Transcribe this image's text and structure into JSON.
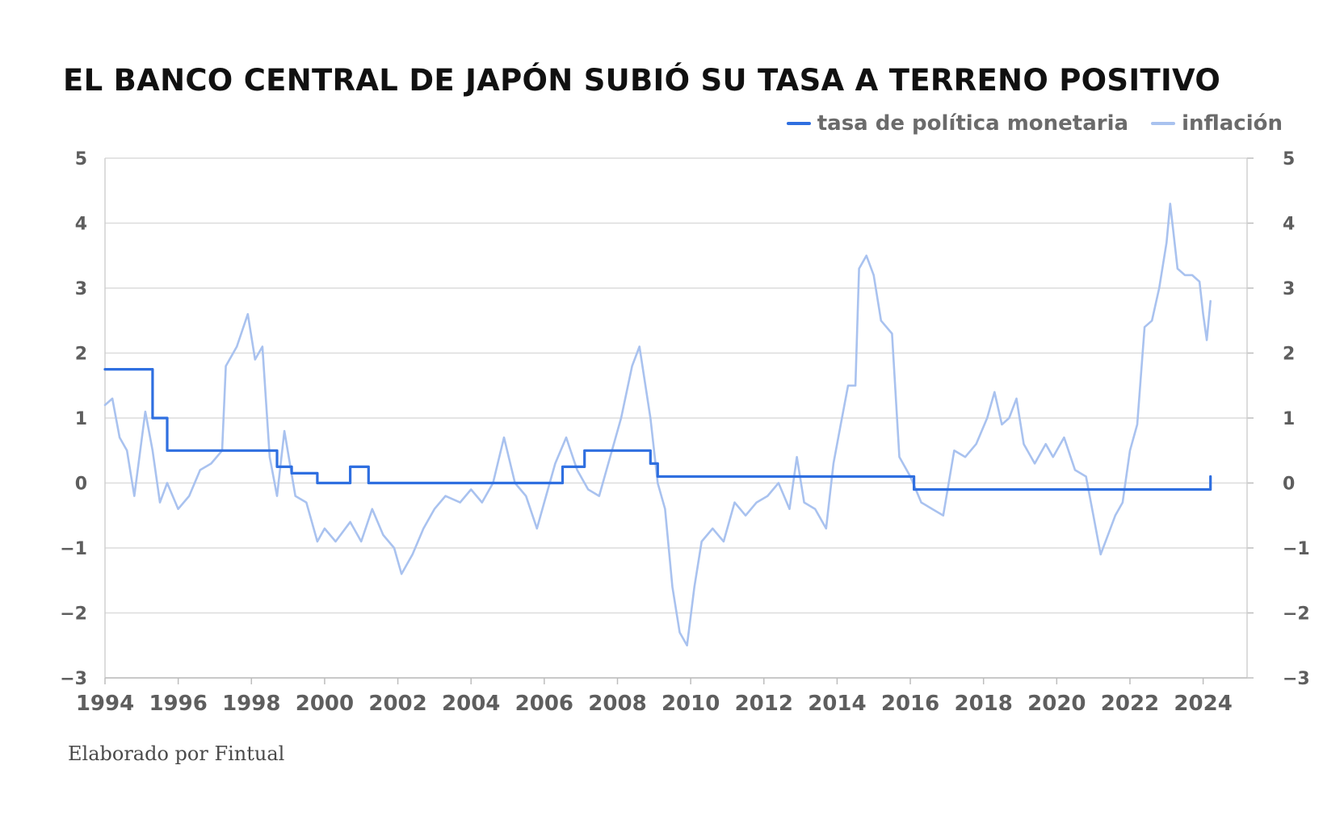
{
  "title": "EL BANCO CENTRAL DE JAPÓN SUBIÓ SU TASA A TERRENO POSITIVO",
  "source": "Elaborado por Fintual",
  "chart_data": {
    "type": "line",
    "title": "EL BANCO CENTRAL DE JAPÓN SUBIÓ SU TASA A TERRENO POSITIVO",
    "xlabel": "",
    "ylabel": "",
    "xlim": [
      1994,
      2025.2
    ],
    "ylim": [
      -3,
      5
    ],
    "grid": true,
    "legend_position": "top-right",
    "x_ticks": [
      "1994",
      "1996",
      "1998",
      "2000",
      "2002",
      "2004",
      "2006",
      "2008",
      "2010",
      "2012",
      "2014",
      "2016",
      "2018",
      "2020",
      "2022",
      "2024"
    ],
    "y_ticks": [
      "5",
      "4",
      "3",
      "2",
      "1",
      "0",
      "−1",
      "−2",
      "−3"
    ],
    "y_tick_values": [
      5,
      4,
      3,
      2,
      1,
      0,
      -1,
      -2,
      -3
    ],
    "series": [
      {
        "name": "tasa de política monetaria",
        "color": "#2f6fe0",
        "step": true,
        "points": [
          [
            1994.0,
            1.75
          ],
          [
            1995.3,
            1.75
          ],
          [
            1995.3,
            1.0
          ],
          [
            1995.7,
            1.0
          ],
          [
            1995.7,
            0.5
          ],
          [
            1998.7,
            0.5
          ],
          [
            1998.7,
            0.25
          ],
          [
            1999.1,
            0.25
          ],
          [
            1999.1,
            0.15
          ],
          [
            1999.8,
            0.15
          ],
          [
            1999.8,
            0.0
          ],
          [
            2000.7,
            0.0
          ],
          [
            2000.7,
            0.25
          ],
          [
            2001.2,
            0.25
          ],
          [
            2001.2,
            0.0
          ],
          [
            2006.5,
            0.0
          ],
          [
            2006.5,
            0.25
          ],
          [
            2007.1,
            0.25
          ],
          [
            2007.1,
            0.5
          ],
          [
            2008.9,
            0.5
          ],
          [
            2008.9,
            0.3
          ],
          [
            2009.1,
            0.3
          ],
          [
            2009.1,
            0.1
          ],
          [
            2016.1,
            0.1
          ],
          [
            2016.1,
            -0.1
          ],
          [
            2024.2,
            -0.1
          ],
          [
            2024.2,
            0.1
          ]
        ]
      },
      {
        "name": "inflación",
        "color": "#a9c2ef",
        "step": false,
        "points": [
          [
            1994.0,
            1.2
          ],
          [
            1994.2,
            1.3
          ],
          [
            1994.4,
            0.7
          ],
          [
            1994.6,
            0.5
          ],
          [
            1994.8,
            -0.2
          ],
          [
            1995.1,
            1.1
          ],
          [
            1995.3,
            0.5
          ],
          [
            1995.5,
            -0.3
          ],
          [
            1995.7,
            0.0
          ],
          [
            1996.0,
            -0.4
          ],
          [
            1996.3,
            -0.2
          ],
          [
            1996.6,
            0.2
          ],
          [
            1996.9,
            0.3
          ],
          [
            1997.2,
            0.5
          ],
          [
            1997.3,
            1.8
          ],
          [
            1997.6,
            2.1
          ],
          [
            1997.9,
            2.6
          ],
          [
            1998.1,
            1.9
          ],
          [
            1998.3,
            2.1
          ],
          [
            1998.5,
            0.4
          ],
          [
            1998.7,
            -0.2
          ],
          [
            1998.9,
            0.8
          ],
          [
            1999.2,
            -0.2
          ],
          [
            1999.5,
            -0.3
          ],
          [
            1999.8,
            -0.9
          ],
          [
            2000.0,
            -0.7
          ],
          [
            2000.3,
            -0.9
          ],
          [
            2000.7,
            -0.6
          ],
          [
            2001.0,
            -0.9
          ],
          [
            2001.3,
            -0.4
          ],
          [
            2001.6,
            -0.8
          ],
          [
            2001.9,
            -1.0
          ],
          [
            2002.1,
            -1.4
          ],
          [
            2002.4,
            -1.1
          ],
          [
            2002.7,
            -0.7
          ],
          [
            2003.0,
            -0.4
          ],
          [
            2003.3,
            -0.2
          ],
          [
            2003.7,
            -0.3
          ],
          [
            2004.0,
            -0.1
          ],
          [
            2004.3,
            -0.3
          ],
          [
            2004.6,
            0.0
          ],
          [
            2004.9,
            0.7
          ],
          [
            2005.2,
            0.0
          ],
          [
            2005.5,
            -0.2
          ],
          [
            2005.8,
            -0.7
          ],
          [
            2006.0,
            -0.3
          ],
          [
            2006.3,
            0.3
          ],
          [
            2006.6,
            0.7
          ],
          [
            2006.9,
            0.2
          ],
          [
            2007.2,
            -0.1
          ],
          [
            2007.5,
            -0.2
          ],
          [
            2007.8,
            0.4
          ],
          [
            2008.1,
            1.0
          ],
          [
            2008.4,
            1.8
          ],
          [
            2008.6,
            2.1
          ],
          [
            2008.9,
            1.0
          ],
          [
            2009.1,
            0.0
          ],
          [
            2009.3,
            -0.4
          ],
          [
            2009.5,
            -1.6
          ],
          [
            2009.7,
            -2.3
          ],
          [
            2009.9,
            -2.5
          ],
          [
            2010.1,
            -1.6
          ],
          [
            2010.3,
            -0.9
          ],
          [
            2010.6,
            -0.7
          ],
          [
            2010.9,
            -0.9
          ],
          [
            2011.2,
            -0.3
          ],
          [
            2011.5,
            -0.5
          ],
          [
            2011.8,
            -0.3
          ],
          [
            2012.1,
            -0.2
          ],
          [
            2012.4,
            0.0
          ],
          [
            2012.7,
            -0.4
          ],
          [
            2012.9,
            0.4
          ],
          [
            2013.1,
            -0.3
          ],
          [
            2013.4,
            -0.4
          ],
          [
            2013.7,
            -0.7
          ],
          [
            2013.9,
            0.3
          ],
          [
            2014.1,
            0.9
          ],
          [
            2014.3,
            1.5
          ],
          [
            2014.5,
            1.5
          ],
          [
            2014.6,
            3.3
          ],
          [
            2014.8,
            3.5
          ],
          [
            2015.0,
            3.2
          ],
          [
            2015.2,
            2.5
          ],
          [
            2015.5,
            2.3
          ],
          [
            2015.7,
            0.4
          ],
          [
            2016.0,
            0.1
          ],
          [
            2016.3,
            -0.3
          ],
          [
            2016.6,
            -0.4
          ],
          [
            2016.9,
            -0.5
          ],
          [
            2017.2,
            0.5
          ],
          [
            2017.5,
            0.4
          ],
          [
            2017.8,
            0.6
          ],
          [
            2018.1,
            1.0
          ],
          [
            2018.3,
            1.4
          ],
          [
            2018.5,
            0.9
          ],
          [
            2018.7,
            1.0
          ],
          [
            2018.9,
            1.3
          ],
          [
            2019.1,
            0.6
          ],
          [
            2019.4,
            0.3
          ],
          [
            2019.7,
            0.6
          ],
          [
            2019.9,
            0.4
          ],
          [
            2020.2,
            0.7
          ],
          [
            2020.5,
            0.2
          ],
          [
            2020.8,
            0.1
          ],
          [
            2021.0,
            -0.5
          ],
          [
            2021.2,
            -1.1
          ],
          [
            2021.4,
            -0.8
          ],
          [
            2021.6,
            -0.5
          ],
          [
            2021.8,
            -0.3
          ],
          [
            2022.0,
            0.5
          ],
          [
            2022.2,
            0.9
          ],
          [
            2022.4,
            2.4
          ],
          [
            2022.6,
            2.5
          ],
          [
            2022.8,
            3.0
          ],
          [
            2023.0,
            3.7
          ],
          [
            2023.1,
            4.3
          ],
          [
            2023.3,
            3.3
          ],
          [
            2023.5,
            3.2
          ],
          [
            2023.7,
            3.2
          ],
          [
            2023.9,
            3.1
          ],
          [
            2024.0,
            2.6
          ],
          [
            2024.1,
            2.2
          ],
          [
            2024.2,
            2.8
          ]
        ]
      }
    ]
  }
}
